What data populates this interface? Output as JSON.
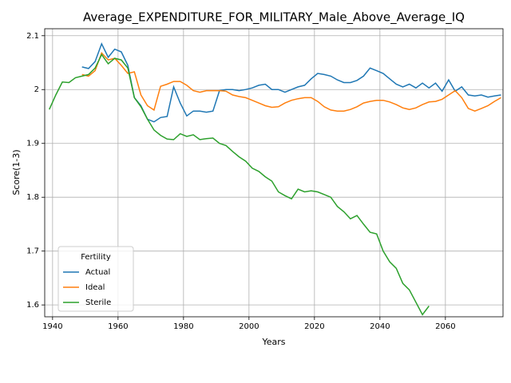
{
  "chart_data": {
    "type": "line",
    "title": "Average_EXPENDITURE_FOR_MILITARY_Male_Above_Average_IQ",
    "x_label": "Years",
    "y_label": "Score(1-3)",
    "legend_title": "Fertility",
    "legend": "lower left",
    "grid": true,
    "x": [
      1939,
      1941,
      1943,
      1945,
      1947,
      1949,
      1951,
      1953,
      1955,
      1957,
      1959,
      1961,
      1963,
      1965,
      1967,
      1969,
      1971,
      1973,
      1975,
      1977,
      1979,
      1981,
      1983,
      1985,
      1987,
      1989,
      1991,
      1993,
      1995,
      1997,
      1999,
      2001,
      2003,
      2005,
      2007,
      2009,
      2011,
      2013,
      2015,
      2017,
      2019,
      2021,
      2023,
      2025,
      2027,
      2029,
      2031,
      2033,
      2035,
      2037,
      2039,
      2041,
      2043,
      2045,
      2047,
      2049,
      2051,
      2053,
      2055,
      2057,
      2059,
      2061,
      2063,
      2065,
      2067,
      2069,
      2071,
      2073,
      2075,
      2077
    ],
    "series": [
      {
        "name": "Actual",
        "color": "#1f77b4",
        "values": [
          null,
          null,
          null,
          null,
          null,
          2.042,
          2.039,
          2.052,
          2.085,
          2.06,
          2.075,
          2.07,
          2.045,
          1.985,
          1.97,
          1.945,
          1.94,
          1.948,
          1.95,
          2.005,
          1.975,
          1.951,
          1.96,
          1.96,
          1.958,
          1.96,
          1.998,
          2.0,
          2.0,
          1.998,
          2.0,
          2.003,
          2.008,
          2.01,
          2.0,
          2.0,
          1.995,
          2.0,
          2.005,
          2.008,
          2.02,
          2.03,
          2.028,
          2.025,
          2.018,
          2.013,
          2.013,
          2.017,
          2.025,
          2.04,
          2.035,
          2.03,
          2.02,
          2.01,
          2.005,
          2.01,
          2.003,
          2.012,
          2.003,
          2.012,
          1.997,
          2.018,
          1.997,
          2.005,
          1.99,
          1.988,
          1.99,
          1.986,
          1.988,
          1.99
        ]
      },
      {
        "name": "Ideal",
        "color": "#ff7f0e",
        "values": [
          null,
          null,
          null,
          null,
          null,
          2.028,
          2.025,
          2.035,
          2.068,
          2.055,
          2.058,
          2.045,
          2.03,
          2.033,
          1.99,
          1.97,
          1.962,
          2.006,
          2.01,
          2.015,
          2.015,
          2.008,
          1.998,
          1.995,
          1.998,
          1.998,
          1.998,
          1.997,
          1.99,
          1.987,
          1.985,
          1.98,
          1.975,
          1.97,
          1.967,
          1.968,
          1.975,
          1.98,
          1.983,
          1.985,
          1.985,
          1.978,
          1.968,
          1.962,
          1.96,
          1.96,
          1.963,
          1.968,
          1.975,
          1.978,
          1.98,
          1.98,
          1.977,
          1.972,
          1.966,
          1.963,
          1.966,
          1.972,
          1.977,
          1.978,
          1.982,
          1.99,
          1.998,
          1.985,
          1.965,
          1.96,
          1.965,
          1.97,
          1.978,
          1.985
        ]
      },
      {
        "name": "Sterile",
        "color": "#2ca02c",
        "values": [
          1.963,
          1.99,
          2.014,
          2.013,
          2.022,
          2.025,
          2.028,
          2.04,
          2.065,
          2.048,
          2.058,
          2.055,
          2.04,
          1.985,
          1.968,
          1.945,
          1.925,
          1.915,
          1.908,
          1.907,
          1.918,
          1.913,
          1.916,
          1.907,
          1.909,
          1.91,
          1.9,
          1.896,
          1.885,
          1.875,
          1.867,
          1.854,
          1.848,
          1.838,
          1.83,
          1.81,
          1.803,
          1.797,
          1.815,
          1.81,
          1.812,
          1.81,
          1.805,
          1.8,
          1.783,
          1.773,
          1.76,
          1.766,
          1.75,
          1.735,
          1.732,
          1.7,
          1.68,
          1.668,
          1.64,
          1.628,
          1.605,
          1.582,
          1.598,
          null,
          null,
          null,
          null,
          null,
          null,
          null,
          null,
          null,
          null,
          null
        ]
      }
    ],
    "xlim": [
      1937.6,
      2077.6
    ],
    "xticks": [
      1940,
      1960,
      1980,
      2000,
      2020,
      2040,
      2060
    ],
    "ylim": [
      1.578,
      2.113
    ],
    "yticks": [
      1.6,
      1.7,
      1.8,
      1.9,
      2.0,
      2.1
    ]
  }
}
